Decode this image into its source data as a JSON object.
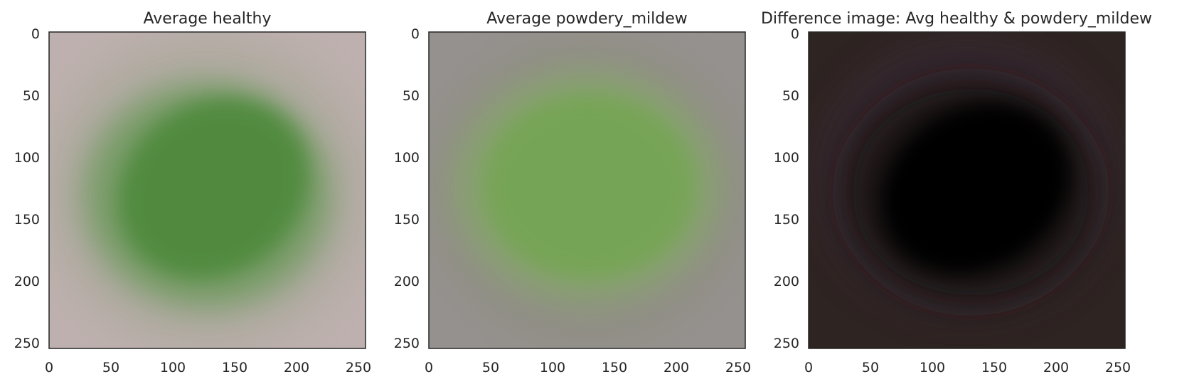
{
  "panels": [
    {
      "title": "Average healthy",
      "x_ticks": [
        "0",
        "50",
        "100",
        "150",
        "200",
        "250"
      ],
      "y_ticks": [
        "0",
        "50",
        "100",
        "150",
        "200",
        "250"
      ],
      "colors": {
        "background": "#bdb0ae",
        "edge_tint": "#a9a79a",
        "center": "#4f8a3c",
        "mid": "#6f9a5f"
      }
    },
    {
      "title": "Average powdery_mildew",
      "x_ticks": [
        "0",
        "50",
        "100",
        "150",
        "200",
        "250"
      ],
      "y_ticks": [
        "0",
        "50",
        "100",
        "150",
        "200",
        "250"
      ],
      "colors": {
        "background": "#95918e",
        "edge_tint": "#8e8d80",
        "center": "#74a552",
        "mid": "#88a36f"
      }
    },
    {
      "title": "Difference image: Avg healthy & powdery_mildew",
      "x_ticks": [
        "0",
        "50",
        "100",
        "150",
        "200",
        "250"
      ],
      "y_ticks": [
        "0",
        "50",
        "100",
        "150",
        "200",
        "250"
      ],
      "colors": {
        "background": "#2e2421",
        "edge_tint": "#3a2c38",
        "center": "#050405",
        "mid": "#1a1418"
      }
    }
  ],
  "axis_range": {
    "x": [
      0,
      256
    ],
    "y": [
      0,
      256
    ]
  }
}
